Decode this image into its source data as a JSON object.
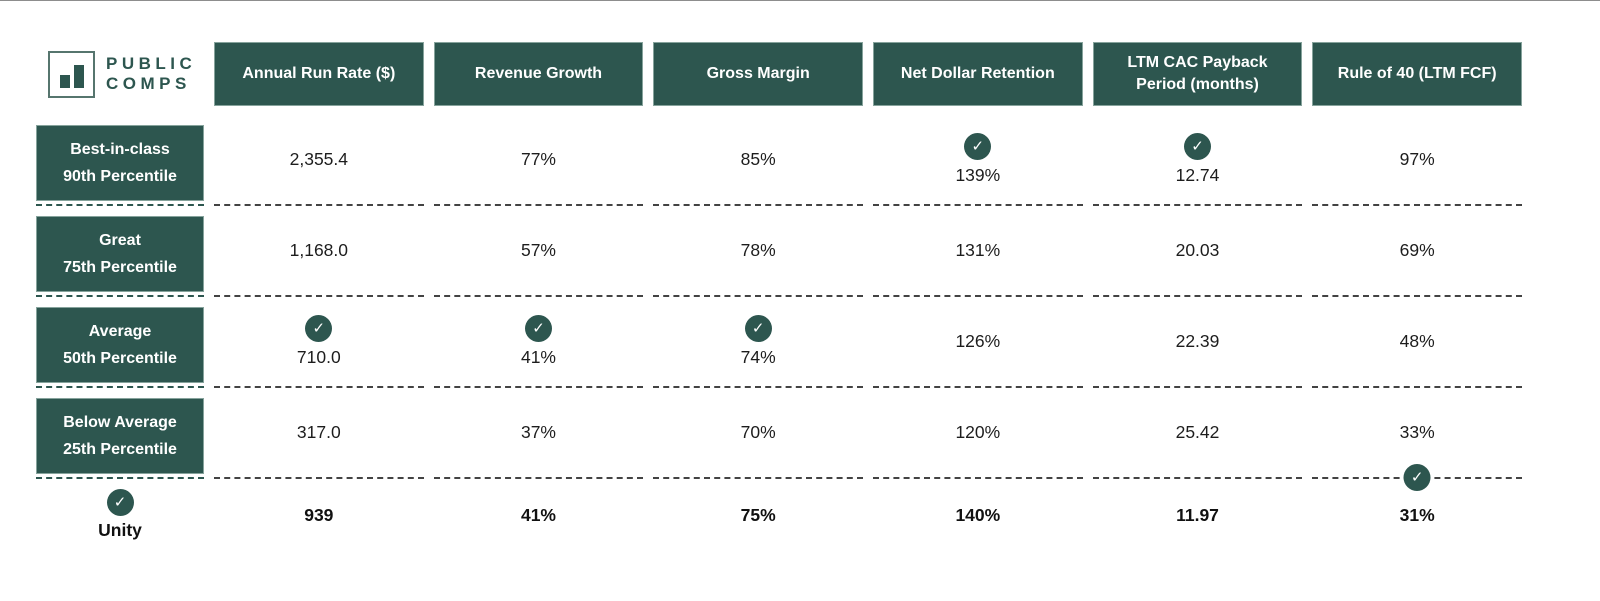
{
  "brand": {
    "line1": "PUBLIC",
    "line2": "COMPS"
  },
  "icons": {
    "check": "✓",
    "logo": "bar-chart"
  },
  "colors": {
    "teal": "#2d564f",
    "header_border": "#86a39c",
    "dash": "#434343"
  },
  "chart_data": {
    "type": "table",
    "title": "Public Comps SaaS benchmark table with Unity metrics",
    "columns": [
      "Annual Run Rate ($)",
      "Revenue Growth",
      "Gross Margin",
      "Net Dollar Retention",
      "LTM CAC Payback Period (months)",
      "Rule of 40 (LTM FCF)"
    ],
    "rows": [
      {
        "label": "Best-in-class 90th Percentile",
        "label_line1": "Best-in-class",
        "label_line2": "90th Percentile",
        "values": [
          "2,355.4",
          "77%",
          "85%",
          "139%",
          "12.74",
          "97%"
        ],
        "checks_above": [
          3,
          4
        ],
        "checks_below": []
      },
      {
        "label": "Great 75th Percentile",
        "label_line1": "Great",
        "label_line2": "75th Percentile",
        "values": [
          "1,168.0",
          "57%",
          "78%",
          "131%",
          "20.03",
          "69%"
        ],
        "checks_above": [],
        "checks_below": []
      },
      {
        "label": "Average 50th Percentile",
        "label_line1": "Average",
        "label_line2": "50th Percentile",
        "values": [
          "710.0",
          "41%",
          "74%",
          "126%",
          "22.39",
          "48%"
        ],
        "checks_above": [
          0,
          1,
          2
        ],
        "checks_below": []
      },
      {
        "label": "Below Average 25th Percentile",
        "label_line1": "Below Average",
        "label_line2": "25th Percentile",
        "values": [
          "317.0",
          "37%",
          "70%",
          "120%",
          "25.42",
          "33%"
        ],
        "checks_above": [],
        "checks_below": [
          5
        ]
      }
    ],
    "footer_row": {
      "label": "Unity",
      "checked": true,
      "values": [
        "939",
        "41%",
        "75%",
        "140%",
        "11.97",
        "31%"
      ]
    }
  }
}
